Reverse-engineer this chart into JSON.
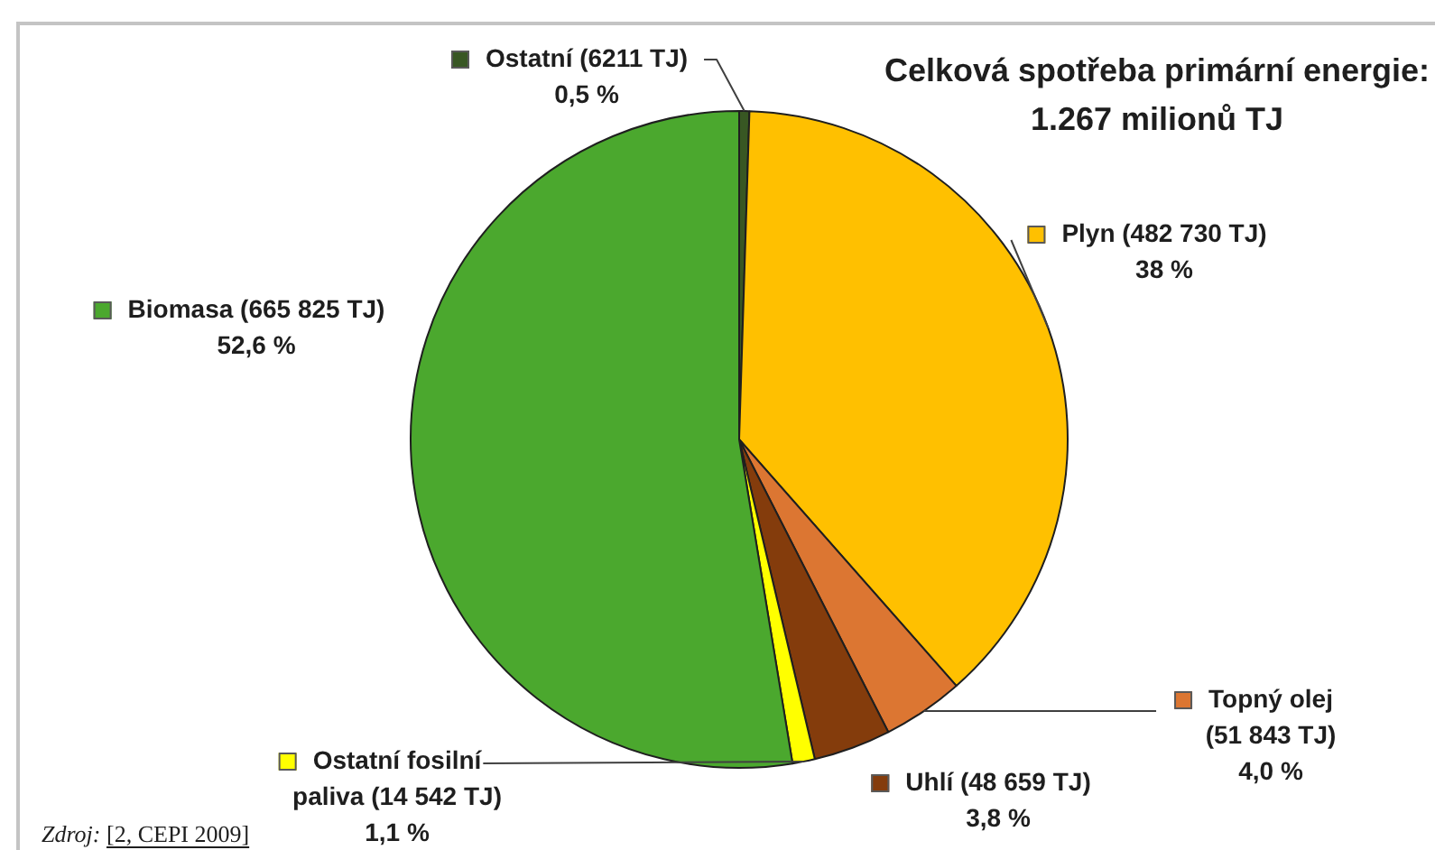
{
  "chart_data": {
    "type": "pie",
    "title": "Celková spotřeba primární energie: 1.267 milionů TJ",
    "categories": [
      "Ostatní (6211 TJ)",
      "Plyn (482 730 TJ)",
      "Topný olej (51 843 TJ)",
      "Uhlí (48 659 TJ)",
      "Ostatní fosilní paliva (14 542 TJ)",
      "Biomasa (665 825 TJ)"
    ],
    "values": [
      0.5,
      38,
      4.0,
      3.8,
      1.1,
      52.6
    ],
    "colors": [
      "#385723",
      "#ffc000",
      "#dc7632",
      "#843c0c",
      "#ffff00",
      "#4ba82e"
    ],
    "value_labels": [
      "0,5 %",
      "38 %",
      "4,0 %",
      "3,8 %",
      "1,1 %",
      "52,6 %"
    ],
    "legend": "right",
    "annotations": [
      "Zdroj: [2, CEPI 2009]"
    ]
  }
}
